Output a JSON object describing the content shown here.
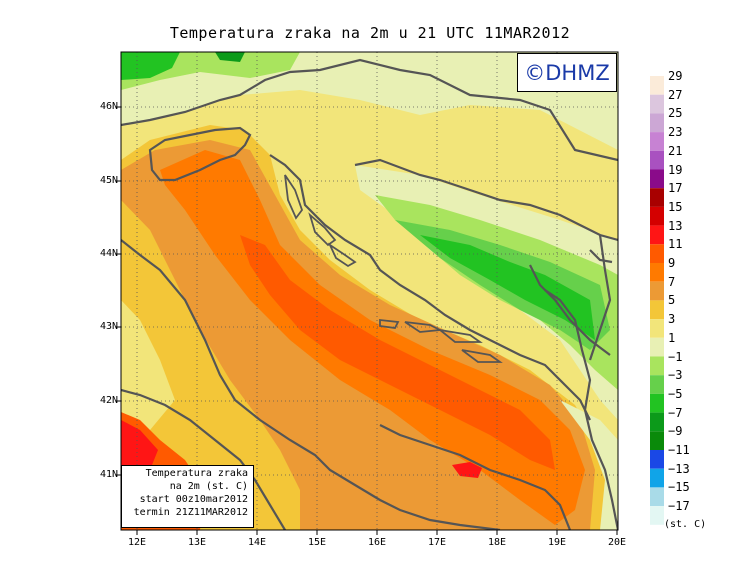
{
  "title": "Temperatura zraka na 2m u 21 UTC 11MAR2012",
  "logo": "©DHMZ",
  "info_box": {
    "line1": "Temperatura zraka",
    "line2": "na 2m (st. C)",
    "line3": "start 00z10mar2012",
    "line4": "termin 21Z11MAR2012"
  },
  "latitude_labels": [
    "46N",
    "45N",
    "44N",
    "43N",
    "42N",
    "41N"
  ],
  "longitude_labels": [
    "12E",
    "13E",
    "14E",
    "15E",
    "16E",
    "17E",
    "18E",
    "19E",
    "20E"
  ],
  "legend": {
    "unit": "(st. C)",
    "values": [
      "29",
      "27",
      "25",
      "23",
      "21",
      "19",
      "17",
      "15",
      "13",
      "11",
      "9",
      "7",
      "5",
      "3",
      "1",
      "−1",
      "−3",
      "−5",
      "−7",
      "−9",
      "−11",
      "−13",
      "−15",
      "−17"
    ],
    "colors": [
      "#fbebd9",
      "#dcc6de",
      "#cca7d5",
      "#c782d3",
      "#a951c0",
      "#8a0b8a",
      "#a80000",
      "#d40000",
      "#ff1515",
      "#ff5a00",
      "#ff7a00",
      "#ec9a35",
      "#f3c638",
      "#f2e57a",
      "#e8f0b4",
      "#a9e45e",
      "#66d04b",
      "#22c322",
      "#0c9a1a",
      "#0a8a0a",
      "#1a48e6",
      "#10a4e8",
      "#a9dbe8",
      "#e3f7f3"
    ]
  }
}
